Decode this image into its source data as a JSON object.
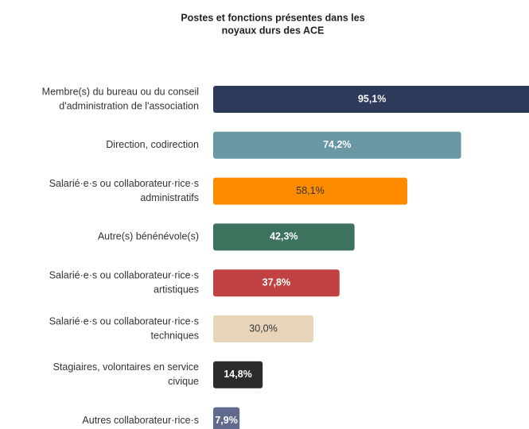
{
  "chart_data": {
    "type": "bar",
    "orientation": "horizontal",
    "title": "Postes et fonctions présentes dans les\nnoyaux durs des ACE",
    "categories": [
      "Membre(s) du bureau ou du conseil\nd'administration de l'association",
      "Direction, codirection",
      "Salarié·e·s ou collaborateur·rice·s\nadministratifs",
      "Autre(s) bénénévole(s)",
      "Salarié·e·s ou collaborateur·rice·s\nartistiques",
      "Salarié·e·s ou collaborateur·rice·s\ntechniques",
      "Stagiaires, volontaires en service\ncivique",
      "Autres collaborateur·rice·s"
    ],
    "values": [
      95.1,
      74.2,
      58.1,
      42.3,
      37.8,
      30.0,
      14.8,
      7.9
    ],
    "value_labels": [
      "95,1%",
      "74,2%",
      "58,1%",
      "42,3%",
      "37,8%",
      "30,0%",
      "14,8%",
      "7,9%"
    ],
    "colors": [
      "#2e3a59",
      "#6a97a4",
      "#ff8c00",
      "#3d735c",
      "#c04242",
      "#e8d4b9",
      "#2b2b2b",
      "#5f6a8d"
    ]
  }
}
